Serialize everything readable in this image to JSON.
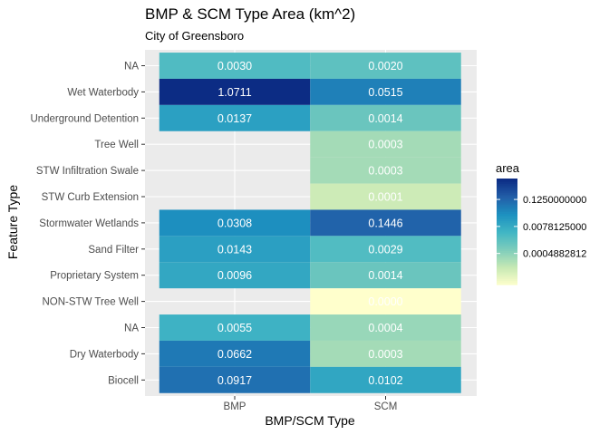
{
  "chart_data": {
    "type": "heatmap",
    "title": "BMP & SCM Type Area (km^2)",
    "subtitle": "City of Greensboro",
    "xlabel": "BMP/SCM Type",
    "ylabel": "Feature Type",
    "x_categories": [
      "BMP",
      "SCM"
    ],
    "y_categories": [
      "NA",
      "Wet Waterbody",
      "Underground Detention",
      "Tree Well",
      "STW Infiltration Swale",
      "STW Curb Extension",
      "Stormwater Wetlands",
      "Sand Filter",
      "Proprietary System",
      "NON-STW Tree Well",
      "NA",
      "Dry Waterbody",
      "Biocell"
    ],
    "cells": [
      {
        "x": "BMP",
        "y_index": 0,
        "value": 0.003,
        "label": "0.0030"
      },
      {
        "x": "SCM",
        "y_index": 0,
        "value": 0.002,
        "label": "0.0020"
      },
      {
        "x": "BMP",
        "y_index": 1,
        "value": 1.0711,
        "label": "1.0711"
      },
      {
        "x": "SCM",
        "y_index": 1,
        "value": 0.0515,
        "label": "0.0515"
      },
      {
        "x": "BMP",
        "y_index": 2,
        "value": 0.0137,
        "label": "0.0137"
      },
      {
        "x": "SCM",
        "y_index": 2,
        "value": 0.0014,
        "label": "0.0014"
      },
      {
        "x": "SCM",
        "y_index": 3,
        "value": 0.0003,
        "label": "0.0003"
      },
      {
        "x": "SCM",
        "y_index": 4,
        "value": 0.0003,
        "label": "0.0003"
      },
      {
        "x": "SCM",
        "y_index": 5,
        "value": 0.0001,
        "label": "0.0001"
      },
      {
        "x": "BMP",
        "y_index": 6,
        "value": 0.0308,
        "label": "0.0308"
      },
      {
        "x": "SCM",
        "y_index": 6,
        "value": 0.1446,
        "label": "0.1446"
      },
      {
        "x": "BMP",
        "y_index": 7,
        "value": 0.0143,
        "label": "0.0143"
      },
      {
        "x": "SCM",
        "y_index": 7,
        "value": 0.0029,
        "label": "0.0029"
      },
      {
        "x": "BMP",
        "y_index": 8,
        "value": 0.0096,
        "label": "0.0096"
      },
      {
        "x": "SCM",
        "y_index": 8,
        "value": 0.0014,
        "label": "0.0014"
      },
      {
        "x": "SCM",
        "y_index": 9,
        "value": 2e-05,
        "label": "0.0000"
      },
      {
        "x": "BMP",
        "y_index": 10,
        "value": 0.0055,
        "label": "0.0055"
      },
      {
        "x": "SCM",
        "y_index": 10,
        "value": 0.0004,
        "label": "0.0004"
      },
      {
        "x": "BMP",
        "y_index": 11,
        "value": 0.0662,
        "label": "0.0662"
      },
      {
        "x": "SCM",
        "y_index": 11,
        "value": 0.0003,
        "label": "0.0003"
      },
      {
        "x": "BMP",
        "y_index": 12,
        "value": 0.0917,
        "label": "0.0917"
      },
      {
        "x": "SCM",
        "y_index": 12,
        "value": 0.0102,
        "label": "0.0102"
      }
    ],
    "color_scale": {
      "name": "area",
      "trans": "log2",
      "palette": "YlGnBu",
      "domain": [
        2e-05,
        1.0711
      ],
      "breaks": [
        0.125,
        0.0078125,
        0.0004882812
      ],
      "break_labels": [
        "0.1250000000",
        "0.0078125000",
        "0.0004882812"
      ]
    },
    "panel_background": "#ebebeb",
    "grid": true,
    "legend_position": "right"
  }
}
